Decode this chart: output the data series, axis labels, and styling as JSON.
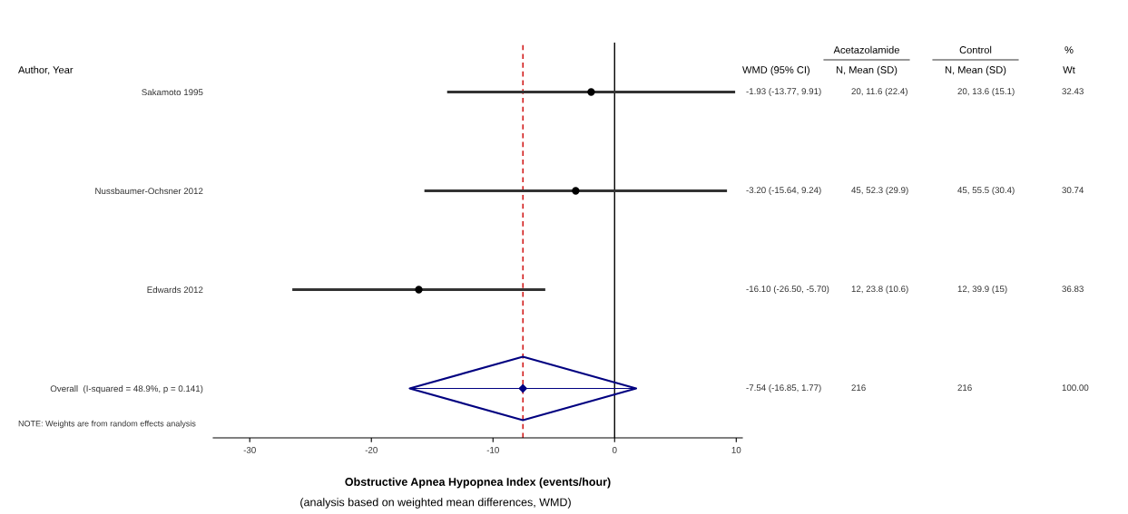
{
  "chart_data": {
    "type": "scatter",
    "orientation": "horizontal",
    "categories": [
      "Sakamoto 1995",
      "Nussbaumer-Ochsner 2012",
      "Edwards 2012",
      "Overall  (I-squared = 48.9%, p = 0.141)"
    ],
    "series": [
      {
        "type": "scatter",
        "marker": "circle",
        "color": "#000000",
        "values": [
          -1.93,
          -3.2,
          -16.1,
          null
        ],
        "errors": [
          [
            -13.77,
            9.91
          ],
          [
            -15.64,
            9.24
          ],
          [
            -26.5,
            -5.7
          ],
          null
        ]
      },
      {
        "type": "scatter",
        "marker": "diamond",
        "color": "#000080",
        "values": [
          null,
          null,
          null,
          -7.54
        ],
        "errors": [
          null,
          null,
          null,
          [
            -16.85,
            1.77
          ]
        ]
      }
    ],
    "xlim": [
      -33,
      10.5
    ],
    "xticks": [
      -30,
      -20,
      -10,
      0,
      10
    ],
    "grid": false,
    "legend": false,
    "xlabel": "Obstructive Apnea Hypopnea Index (events/hour)",
    "ref_lines": [
      {
        "axis": "x",
        "value": 0,
        "color": "#000000",
        "line_style": "solid"
      },
      {
        "axis": "x",
        "value": -7.54,
        "color": "#cc0000",
        "line_style": "dashed"
      }
    ],
    "annotations": [
      "Author, Year",
      "WMD (95% CI)",
      "Acetazolamide",
      "N, Mean (SD)",
      "Control",
      "N, Mean (SD)",
      "%",
      "Wt",
      "-1.93 (-13.77, 9.91)",
      "20, 11.6 (22.4)",
      "20, 13.6 (15.1)",
      "32.43",
      "-3.20 (-15.64, 9.24)",
      "45, 52.3 (29.9)",
      "45, 55.5 (30.4)",
      "30.74",
      "-16.10 (-26.50, -5.70)",
      "12, 23.8 (10.6)",
      "12, 39.9 (15)",
      "36.83",
      "-7.54 (-16.85, 1.77)",
      "216",
      "216",
      "100.00",
      "NOTE: Weights are from random effects analysis",
      "(analysis based on weighted mean differences, WMD)"
    ]
  }
}
